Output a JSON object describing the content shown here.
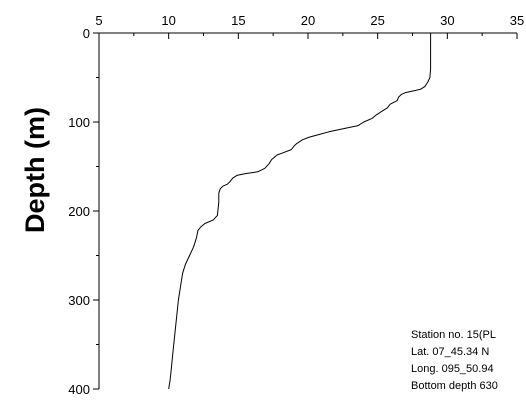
{
  "chart_data": {
    "type": "line",
    "orientation": "vertical-profile",
    "title": "",
    "xlabel": "",
    "ylabel": "Depth (m)",
    "x_axis_position": "top",
    "xlim": [
      5,
      35
    ],
    "ylim": [
      0,
      400
    ],
    "y_inverted": true,
    "x_ticks": [
      "5",
      "10",
      "15",
      "20",
      "25",
      "30",
      "35"
    ],
    "y_ticks": [
      "0",
      "100",
      "200",
      "300",
      "400"
    ],
    "grid": false,
    "series": [
      {
        "name": "",
        "color": "#000000",
        "points": [
          [
            28.8,
            0
          ],
          [
            28.8,
            10
          ],
          [
            28.8,
            20
          ],
          [
            28.8,
            30
          ],
          [
            28.8,
            40
          ],
          [
            28.75,
            50
          ],
          [
            28.6,
            55
          ],
          [
            28.4,
            60
          ],
          [
            28.1,
            63
          ],
          [
            27.6,
            65
          ],
          [
            27.0,
            67
          ],
          [
            26.7,
            69
          ],
          [
            26.5,
            72
          ],
          [
            26.4,
            76
          ],
          [
            25.9,
            80
          ],
          [
            25.7,
            84
          ],
          [
            25.3,
            88
          ],
          [
            24.9,
            92
          ],
          [
            24.6,
            96
          ],
          [
            24.0,
            100
          ],
          [
            23.6,
            104
          ],
          [
            22.4,
            108
          ],
          [
            21.5,
            111
          ],
          [
            20.8,
            114
          ],
          [
            20.1,
            117
          ],
          [
            19.6,
            120
          ],
          [
            19.2,
            124
          ],
          [
            19.0,
            127
          ],
          [
            18.8,
            131
          ],
          [
            18.3,
            134
          ],
          [
            17.8,
            137
          ],
          [
            17.4,
            142
          ],
          [
            17.2,
            147
          ],
          [
            16.9,
            152
          ],
          [
            16.4,
            156
          ],
          [
            15.5,
            158
          ],
          [
            14.9,
            160
          ],
          [
            14.6,
            163
          ],
          [
            14.4,
            167
          ],
          [
            14.2,
            170
          ],
          [
            13.9,
            172
          ],
          [
            13.7,
            175
          ],
          [
            13.6,
            180
          ],
          [
            13.6,
            190
          ],
          [
            13.5,
            205
          ],
          [
            13.2,
            210
          ],
          [
            12.6,
            214
          ],
          [
            12.3,
            218
          ],
          [
            12.1,
            222
          ],
          [
            12.0,
            230
          ],
          [
            11.8,
            240
          ],
          [
            11.5,
            250
          ],
          [
            11.2,
            260
          ],
          [
            11.0,
            270
          ],
          [
            10.9,
            280
          ],
          [
            10.8,
            290
          ],
          [
            10.7,
            300
          ],
          [
            10.6,
            315
          ],
          [
            10.5,
            330
          ],
          [
            10.4,
            345
          ],
          [
            10.3,
            360
          ],
          [
            10.2,
            375
          ],
          [
            10.1,
            390
          ],
          [
            10.0,
            400
          ]
        ]
      }
    ],
    "annotations": [
      "Station no. 15(PL",
      "Lat. 07_45.34 N",
      "Long. 095_50.94",
      "Bottom depth 630"
    ]
  }
}
